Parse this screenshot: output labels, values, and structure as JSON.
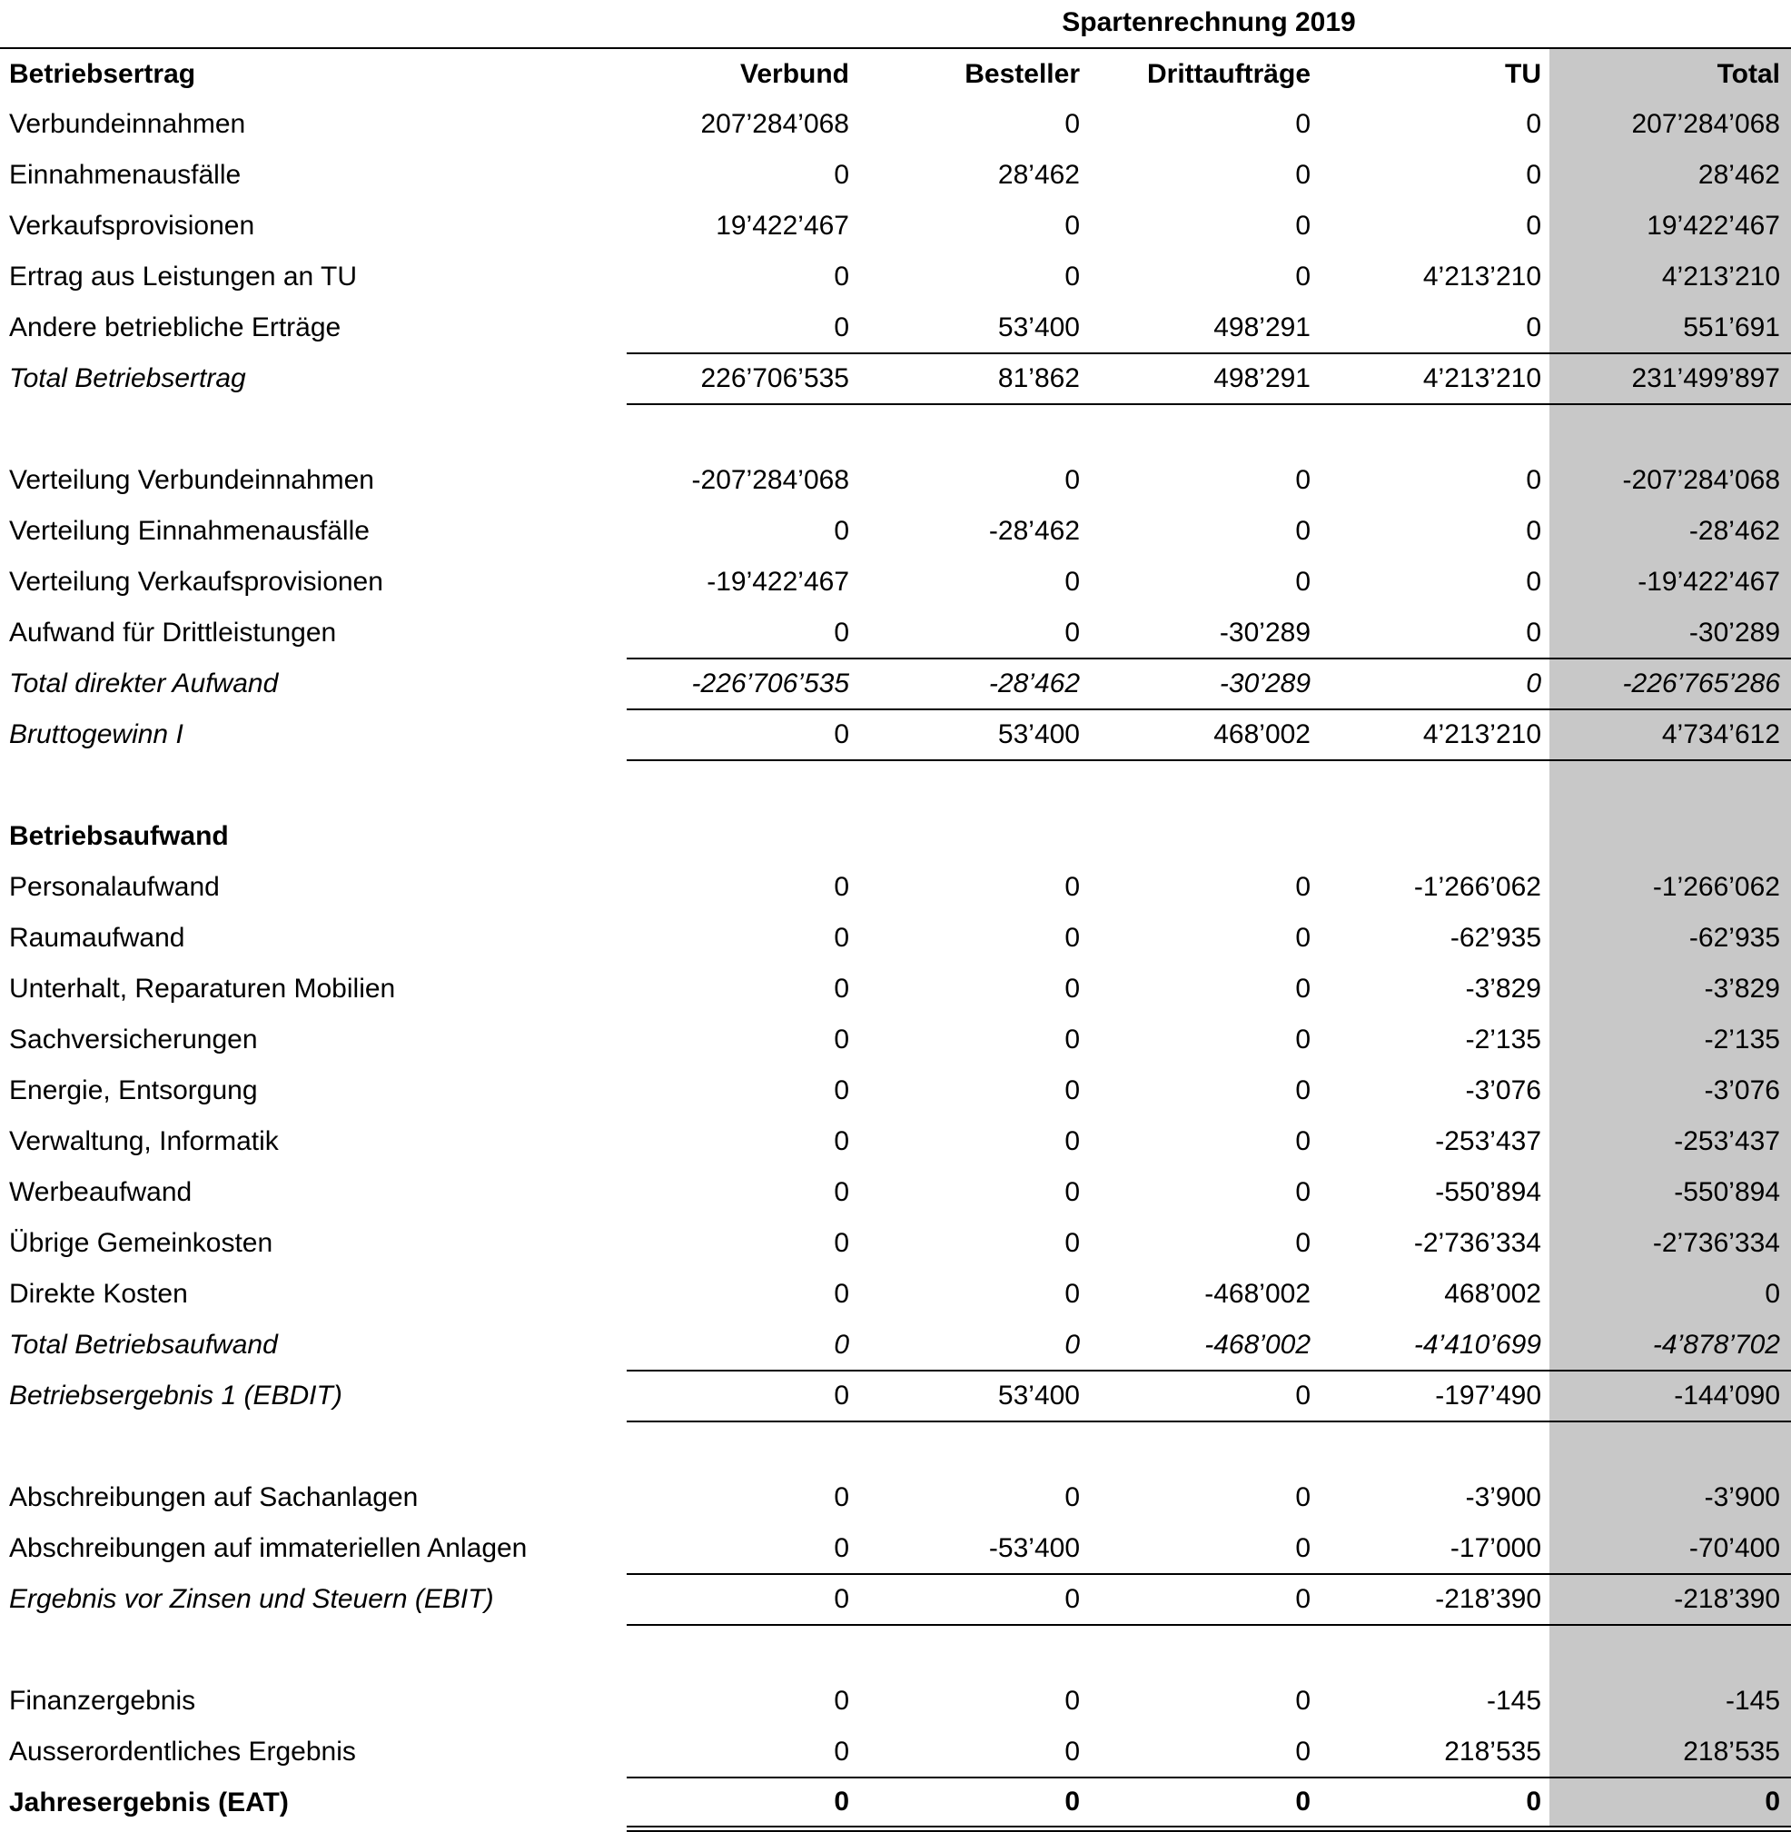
{
  "title": "Spartenrechnung 2019",
  "colors": {
    "total_column_background": "#c8c8c8",
    "rule": "#000000",
    "text": "#000000"
  },
  "table": {
    "columns": [
      "Betriebsertrag",
      "Verbund",
      "Besteller",
      "Drittaufträge",
      "TU",
      "Total"
    ],
    "rows": [
      {
        "kind": "data",
        "label": "Verbundeinnahmen",
        "values": [
          "207’284’068",
          "0",
          "0",
          "0",
          "207’284’068"
        ]
      },
      {
        "kind": "data",
        "label": "Einnahmenausfälle",
        "values": [
          "0",
          "28’462",
          "0",
          "0",
          "28’462"
        ]
      },
      {
        "kind": "data",
        "label": "Verkaufsprovisionen",
        "values": [
          "19’422’467",
          "0",
          "0",
          "0",
          "19’422’467"
        ]
      },
      {
        "kind": "data",
        "label": "Ertrag aus Leistungen an TU",
        "values": [
          "0",
          "0",
          "0",
          "4’213’210",
          "4’213’210"
        ]
      },
      {
        "kind": "data",
        "label": "Andere betriebliche Erträge",
        "values": [
          "0",
          "53’400",
          "498’291",
          "0",
          "551’691"
        ]
      },
      {
        "kind": "result",
        "label": "Total Betriebsertrag",
        "values": [
          "226’706’535",
          "81’862",
          "498’291",
          "4’213’210",
          "231’499’897"
        ]
      },
      {
        "kind": "spacer"
      },
      {
        "kind": "data",
        "label": "Verteilung Verbundeinnahmen",
        "values": [
          "-207’284’068",
          "0",
          "0",
          "0",
          "-207’284’068"
        ]
      },
      {
        "kind": "data",
        "label": "Verteilung Einnahmenausfälle",
        "values": [
          "0",
          "-28’462",
          "0",
          "0",
          "-28’462"
        ]
      },
      {
        "kind": "data",
        "label": "Verteilung Verkaufsprovisionen",
        "values": [
          "-19’422’467",
          "0",
          "0",
          "0",
          "-19’422’467"
        ]
      },
      {
        "kind": "data",
        "label": "Aufwand für Drittleistungen",
        "values": [
          "0",
          "0",
          "-30’289",
          "0",
          "-30’289"
        ]
      },
      {
        "kind": "subtotal_open",
        "label": "Total direkter Aufwand",
        "values": [
          "-226’706’535",
          "-28’462",
          "-30’289",
          "0",
          "-226’765’286"
        ]
      },
      {
        "kind": "result",
        "label": "Bruttogewinn I",
        "values": [
          "0",
          "53’400",
          "468’002",
          "4’213’210",
          "4’734’612"
        ]
      },
      {
        "kind": "spacer"
      },
      {
        "kind": "section",
        "label": "Betriebsaufwand"
      },
      {
        "kind": "data",
        "label": "Personalaufwand",
        "values": [
          "0",
          "0",
          "0",
          "-1’266’062",
          "-1’266’062"
        ]
      },
      {
        "kind": "data",
        "label": "Raumaufwand",
        "values": [
          "0",
          "0",
          "0",
          "-62’935",
          "-62’935"
        ]
      },
      {
        "kind": "data",
        "label": "Unterhalt, Reparaturen Mobilien",
        "values": [
          "0",
          "0",
          "0",
          "-3’829",
          "-3’829"
        ]
      },
      {
        "kind": "data",
        "label": "Sachversicherungen",
        "values": [
          "0",
          "0",
          "0",
          "-2’135",
          "-2’135"
        ]
      },
      {
        "kind": "data",
        "label": "Energie, Entsorgung",
        "values": [
          "0",
          "0",
          "0",
          "-3’076",
          "-3’076"
        ]
      },
      {
        "kind": "data",
        "label": "Verwaltung, Informatik",
        "values": [
          "0",
          "0",
          "0",
          "-253’437",
          "-253’437"
        ]
      },
      {
        "kind": "data",
        "label": "Werbeaufwand",
        "values": [
          "0",
          "0",
          "0",
          "-550’894",
          "-550’894"
        ]
      },
      {
        "kind": "data",
        "label": "Übrige Gemeinkosten",
        "values": [
          "0",
          "0",
          "0",
          "-2’736’334",
          "-2’736’334"
        ]
      },
      {
        "kind": "data",
        "label": "Direkte Kosten",
        "values": [
          "0",
          "0",
          "-468’002",
          "468’002",
          "0"
        ]
      },
      {
        "kind": "subtotal_plain",
        "label": "Total Betriebsaufwand",
        "values": [
          "0",
          "0",
          "-468’002",
          "-4’410’699",
          "-4’878’702"
        ]
      },
      {
        "kind": "result",
        "label": "Betriebsergebnis 1 (EBDIT)",
        "values": [
          "0",
          "53’400",
          "0",
          "-197’490",
          "-144’090"
        ]
      },
      {
        "kind": "spacer"
      },
      {
        "kind": "data",
        "label": "Abschreibungen auf Sachanlagen",
        "values": [
          "0",
          "0",
          "0",
          "-3’900",
          "-3’900"
        ]
      },
      {
        "kind": "data",
        "label": "Abschreibungen auf immateriellen Anlagen",
        "values": [
          "0",
          "-53’400",
          "0",
          "-17’000",
          "-70’400"
        ]
      },
      {
        "kind": "result",
        "label": "Ergebnis vor Zinsen und Steuern (EBIT)",
        "values": [
          "0",
          "0",
          "0",
          "-218’390",
          "-218’390"
        ]
      },
      {
        "kind": "spacer"
      },
      {
        "kind": "data",
        "label": "Finanzergebnis",
        "values": [
          "0",
          "0",
          "0",
          "-145",
          "-145"
        ]
      },
      {
        "kind": "data",
        "label": "Ausserordentliches Ergebnis",
        "values": [
          "0",
          "0",
          "0",
          "218’535",
          "218’535"
        ]
      },
      {
        "kind": "final",
        "label": "Jahresergebnis (EAT)",
        "values": [
          "0",
          "0",
          "0",
          "0",
          "0"
        ]
      }
    ]
  }
}
